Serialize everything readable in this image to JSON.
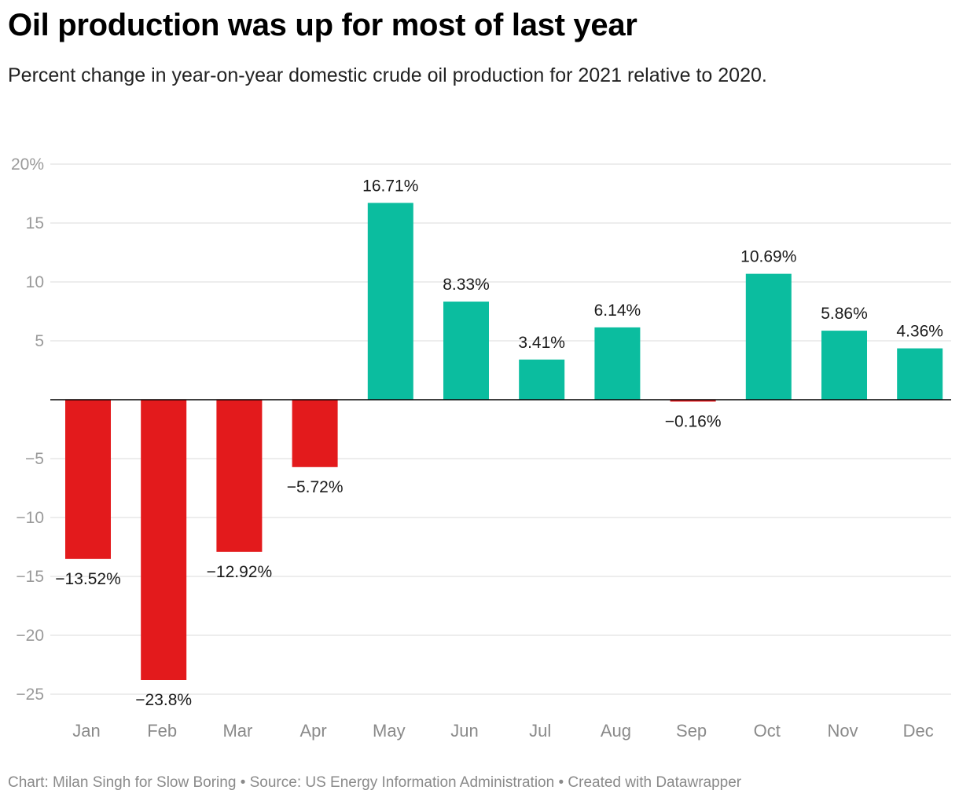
{
  "chart_data": {
    "type": "bar",
    "title": "Oil production was up for most of last year",
    "subtitle": "Percent change in year-on-year domestic crude oil production for 2021 relative to 2020.",
    "categories": [
      "Jan",
      "Feb",
      "Mar",
      "Apr",
      "May",
      "Jun",
      "Jul",
      "Aug",
      "Sep",
      "Oct",
      "Nov",
      "Dec"
    ],
    "values": [
      -13.52,
      -23.8,
      -12.92,
      -5.72,
      16.71,
      8.33,
      3.41,
      6.14,
      -0.16,
      10.69,
      5.86,
      4.36
    ],
    "data_labels": [
      "−13.52%",
      "−23.8%",
      "−12.92%",
      "−5.72%",
      "16.71%",
      "8.33%",
      "3.41%",
      "6.14%",
      "−0.16%",
      "10.69%",
      "5.86%",
      "4.36%"
    ],
    "yticks": [
      20,
      15,
      10,
      5,
      -5,
      -10,
      -15,
      -20,
      -25
    ],
    "ytick_labels": [
      "20%",
      "15",
      "10",
      "5",
      "−5",
      "−10",
      "−15",
      "−20",
      "−25"
    ],
    "ylim": [
      -25,
      20
    ],
    "grid": true,
    "colors": {
      "positive": "#0bbd9f",
      "negative": "#e31a1c",
      "grid": "#e2e2e2",
      "baseline": "#000000"
    }
  },
  "footer": "Chart: Milan Singh for Slow Boring • Source: US Energy Information Administration • Created with Datawrapper"
}
